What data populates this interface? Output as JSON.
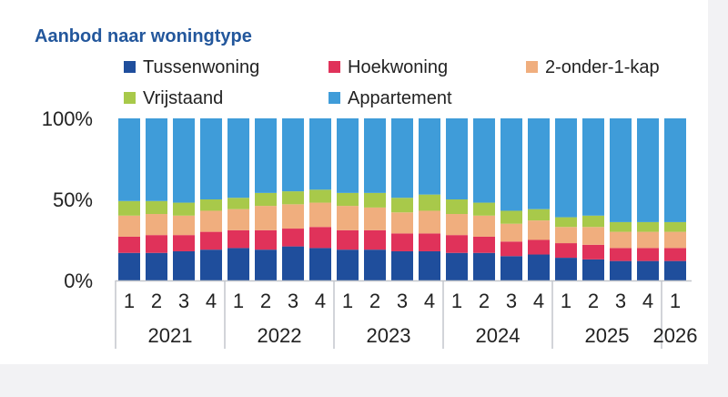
{
  "chart_data": {
    "type": "bar",
    "stacked": true,
    "title": "Aanbod naar woningtype",
    "ylim": [
      0,
      100
    ],
    "yticks": [
      "0%",
      "50%",
      "100%"
    ],
    "categories": [
      "1",
      "2",
      "3",
      "4",
      "1",
      "2",
      "3",
      "4",
      "1",
      "2",
      "3",
      "4",
      "1",
      "2",
      "3",
      "4",
      "1",
      "2",
      "3",
      "4",
      "1"
    ],
    "years": [
      {
        "label": "2021",
        "count": 4
      },
      {
        "label": "2022",
        "count": 4
      },
      {
        "label": "2023",
        "count": 4
      },
      {
        "label": "2024",
        "count": 4
      },
      {
        "label": "2025",
        "count": 4
      },
      {
        "label": "2026",
        "count": 1
      }
    ],
    "legend_placement": "top",
    "grid": false,
    "series": [
      {
        "name": "Tussenwoning",
        "color": "#1f4e9c",
        "values": [
          17,
          17,
          18,
          19,
          20,
          19,
          21,
          20,
          19,
          19,
          18,
          18,
          17,
          17,
          15,
          16,
          14,
          13,
          12,
          12,
          12
        ]
      },
      {
        "name": "Hoekwoning",
        "color": "#e0325a",
        "values": [
          10,
          11,
          10,
          11,
          11,
          12,
          11,
          13,
          12,
          12,
          11,
          11,
          11,
          10,
          9,
          9,
          9,
          9,
          8,
          8,
          8
        ]
      },
      {
        "name": "2-onder-1-kap",
        "color": "#f0ae7e",
        "values": [
          13,
          13,
          12,
          13,
          13,
          15,
          15,
          15,
          15,
          14,
          13,
          14,
          13,
          13,
          11,
          12,
          10,
          11,
          10,
          10,
          10
        ]
      },
      {
        "name": "Vrijstaand",
        "color": "#a8c94a",
        "values": [
          9,
          8,
          8,
          7,
          7,
          8,
          8,
          8,
          8,
          9,
          9,
          10,
          9,
          8,
          8,
          7,
          6,
          7,
          6,
          6,
          6
        ]
      },
      {
        "name": "Appartement",
        "color": "#3f9cd9",
        "values": [
          51,
          51,
          52,
          50,
          49,
          46,
          45,
          44,
          46,
          46,
          49,
          47,
          50,
          52,
          57,
          56,
          61,
          60,
          64,
          64,
          64
        ]
      }
    ]
  }
}
